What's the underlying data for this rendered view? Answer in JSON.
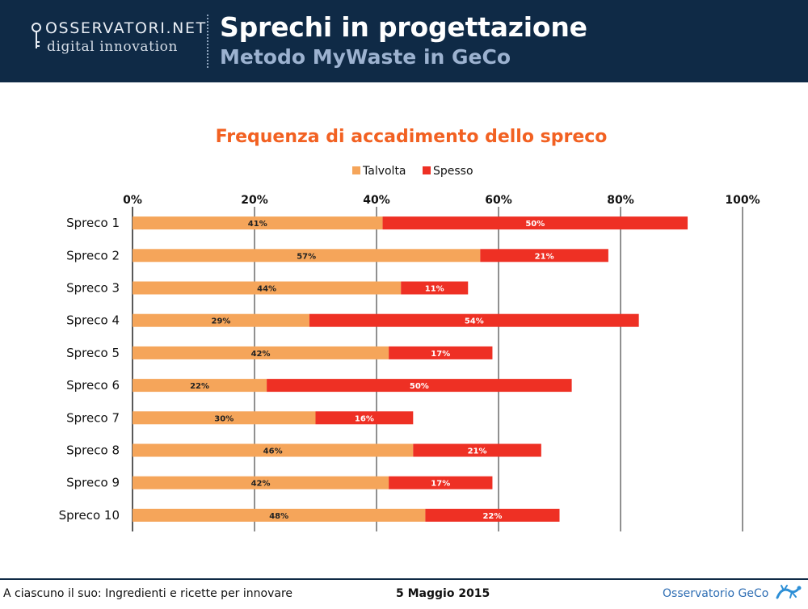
{
  "header": {
    "logo_word": "OSSERVATORI.NET",
    "logo_sub": "digital innovation",
    "title": "Sprechi in progettazione",
    "subtitle": "Metodo MyWaste in GeCo"
  },
  "footer": {
    "left": "A ciascuno il suo: Ingredienti e ricette per innovare",
    "date": "5 Maggio 2015",
    "right": "Osservatorio GeCo"
  },
  "colors": {
    "talvolta": "#f5a55a",
    "spesso": "#ee3024",
    "title": "#f26122",
    "grid": "#222222"
  },
  "chart_data": {
    "type": "bar",
    "orientation": "horizontal",
    "stacked": true,
    "title": "Frequenza di accadimento dello spreco",
    "categories": [
      "Spreco 1",
      "Spreco 2",
      "Spreco 3",
      "Spreco 4",
      "Spreco 5",
      "Spreco 6",
      "Spreco 7",
      "Spreco 8",
      "Spreco 9",
      "Spreco 10"
    ],
    "series": [
      {
        "name": "Talvolta",
        "values": [
          41,
          57,
          44,
          29,
          42,
          22,
          30,
          46,
          42,
          48
        ],
        "labels": [
          "41%",
          "57%",
          "44%",
          "29%",
          "42%",
          "22%",
          "30%",
          "46%",
          "42%",
          "48%"
        ]
      },
      {
        "name": "Spesso",
        "values": [
          50,
          21,
          11,
          54,
          17,
          50,
          16,
          21,
          17,
          22
        ],
        "labels": [
          "50%",
          "21%",
          "11%",
          "54%",
          "17%",
          "50%",
          "16%",
          "21%",
          "17%",
          "22%"
        ]
      }
    ],
    "xlim": [
      0,
      100
    ],
    "xticks": [
      "0%",
      "20%",
      "40%",
      "60%",
      "80%",
      "100%"
    ],
    "legend_position": "top",
    "grid": true,
    "xlabel": "",
    "ylabel": ""
  }
}
